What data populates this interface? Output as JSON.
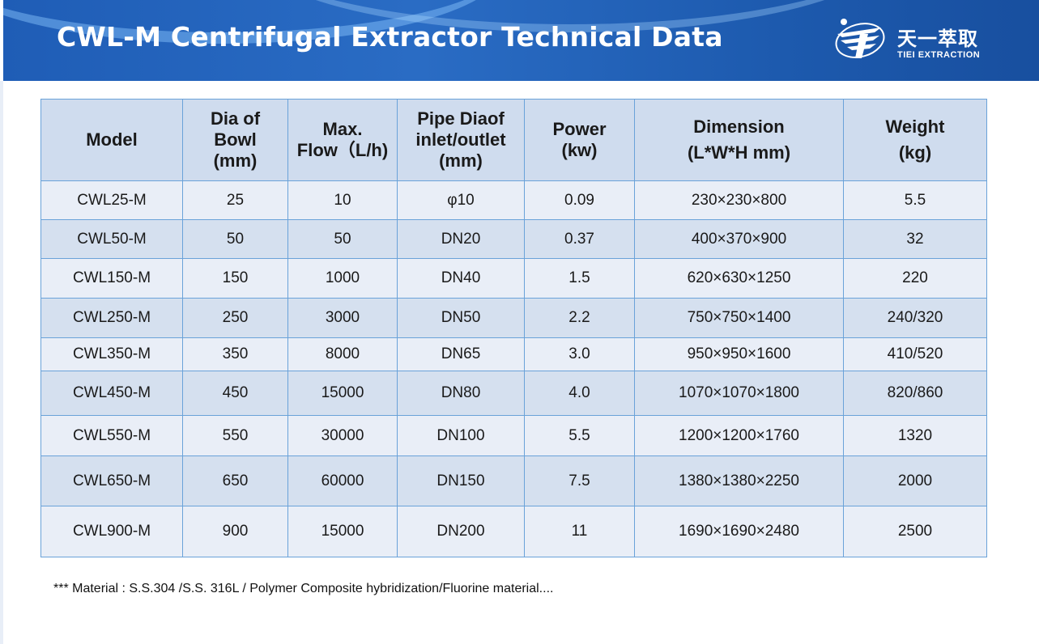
{
  "header": {
    "title": "CWL-M Centrifugal Extractor Technical Data",
    "logo_cn": "天一萃取",
    "logo_en": "TIEI EXTRACTION",
    "logo_icon": "tiei-logo-icon"
  },
  "colors": {
    "header_bg": "#2a6cc4",
    "table_header_bg": "#cfdcee",
    "row_light": "#e9eef7",
    "row_dark": "#d5e0ef",
    "border": "#6aa2d9"
  },
  "table": {
    "columns": [
      [
        "Dia of",
        "Bowl",
        "(mm)"
      ],
      [
        "Max.",
        "Flow（L/h)"
      ],
      [
        "Pipe Diaof",
        "inlet/outlet",
        "(mm)"
      ],
      [
        "Power",
        "(kw)"
      ],
      [
        "Dimension",
        "(L*W*H mm)"
      ],
      [
        "Weight",
        "(kg)"
      ]
    ],
    "col_model": "Model",
    "rows": [
      [
        "CWL25-M",
        "25",
        "10",
        "φ10",
        "0.09",
        "230×230×800",
        "5.5"
      ],
      [
        "CWL50-M",
        "50",
        "50",
        "DN20",
        "0.37",
        "400×370×900",
        "32"
      ],
      [
        "CWL150-M",
        "150",
        "1000",
        "DN40",
        "1.5",
        "620×630×1250",
        "220"
      ],
      [
        "CWL250-M",
        "250",
        "3000",
        "DN50",
        "2.2",
        "750×750×1400",
        "240/320"
      ],
      [
        "CWL350-M",
        "350",
        "8000",
        "DN65",
        "3.0",
        "950×950×1600",
        "410/520"
      ],
      [
        "CWL450-M",
        "450",
        "15000",
        "DN80",
        "4.0",
        "1070×1070×1800",
        "820/860"
      ],
      [
        "CWL550-M",
        "550",
        "30000",
        "DN100",
        "5.5",
        "1200×1200×1760",
        "1320"
      ],
      [
        "CWL650-M",
        "650",
        "60000",
        "DN150",
        "7.5",
        "1380×1380×2250",
        "2000"
      ],
      [
        "CWL900-M",
        "900",
        "15000",
        "DN200",
        "11",
        "1690×1690×2480",
        "2500"
      ]
    ]
  },
  "note": "*** Material : S.S.304 /S.S. 316L / Polymer Composite hybridization/Fluorine material...."
}
